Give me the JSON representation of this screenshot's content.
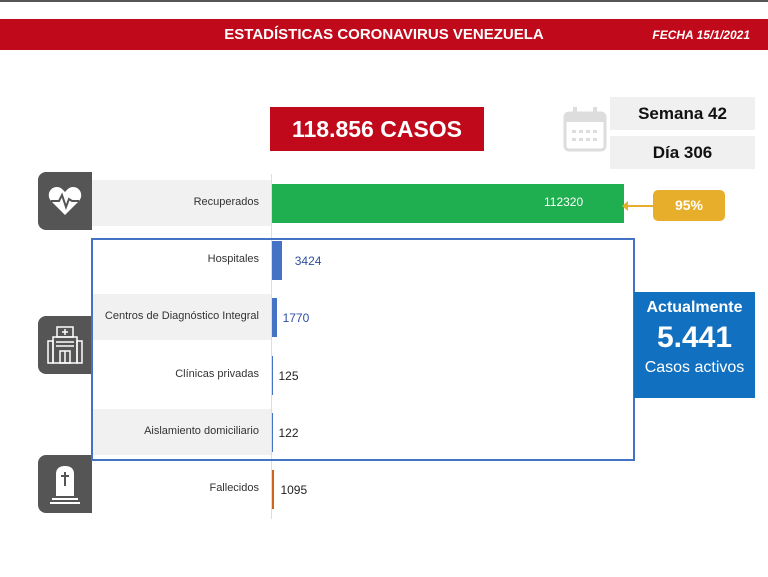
{
  "header": {
    "title": "ESTADÍSTICAS CORONAVIRUS VENEZUELA",
    "date": "FECHA 15/1/2021"
  },
  "total_cases": "118.856 CASOS",
  "week": "Semana 42",
  "day": "Día 306",
  "active": {
    "label_top": "Actualmente",
    "value": "5.441",
    "label_bottom": "Casos activos"
  },
  "recovered_pct": "95%",
  "colors": {
    "header": "#c0091a",
    "recovered": "#1faf50",
    "hospital": "#4472c4",
    "deaths": "#d0641e",
    "active": "#1270c0",
    "pct": "#e6ae2a"
  },
  "icons": [
    "heart-pulse-icon",
    "hospital-icon",
    "tombstone-icon",
    "calendar-icon"
  ],
  "chart_data": {
    "type": "bar",
    "orientation": "horizontal",
    "categories": [
      "Recuperados",
      "Hospitales",
      "Centros de Diagnóstico Integral",
      "Clínicas privadas",
      "Aislamiento domiciliario",
      "Fallecidos"
    ],
    "values": [
      112320,
      3424,
      1770,
      125,
      122,
      1095
    ],
    "labels": [
      "112320",
      "3424",
      "1770",
      "125",
      "122",
      "1095"
    ],
    "bar_colors": [
      "#1faf50",
      "#4472c4",
      "#4472c4",
      "#4472c4",
      "#4472c4",
      "#d0641e"
    ]
  }
}
